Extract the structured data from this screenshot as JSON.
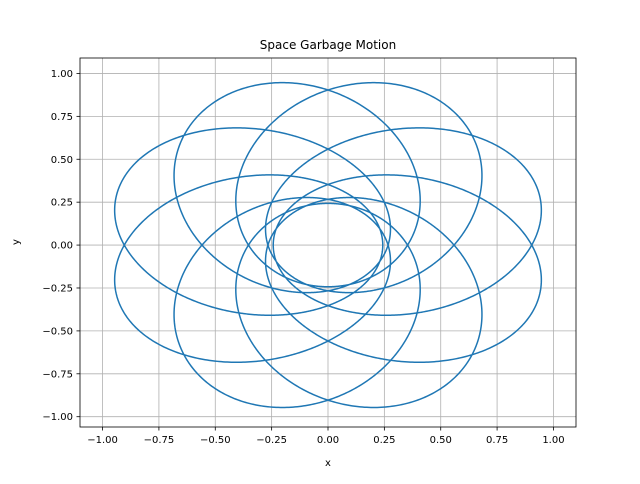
{
  "chart_data": {
    "type": "line",
    "title": "Space Garbage Motion",
    "xlabel": "x",
    "ylabel": "y",
    "xlim": [
      -1.1,
      1.1
    ],
    "ylim": [
      -1.06,
      1.09
    ],
    "xticks": [
      -1.0,
      -0.75,
      -0.5,
      -0.25,
      0.0,
      0.25,
      0.5,
      0.75,
      1.0
    ],
    "yticks": [
      -1.0,
      -0.75,
      -0.5,
      -0.25,
      0.0,
      0.25,
      0.5,
      0.75,
      1.0
    ],
    "xtick_labels": [
      "−1.00",
      "−0.75",
      "−0.50",
      "−0.25",
      "0.00",
      "0.25",
      "0.50",
      "0.75",
      "1.00"
    ],
    "ytick_labels": [
      "−1.00",
      "−0.75",
      "−0.50",
      "−0.25",
      "0.00",
      "0.25",
      "0.50",
      "0.75",
      "1.00"
    ],
    "grid": true,
    "legend": "none",
    "series": [
      {
        "color": "#1f77b4",
        "curve": "precessing ellipse (rosette), 8 lobes",
        "semi_major_axis": 0.615,
        "eccentricity": 0.605,
        "precession_per_orbit_deg": 45,
        "start": [
          1.0,
          0.0
        ],
        "end": [
          0.95,
          0.23
        ]
      }
    ]
  }
}
